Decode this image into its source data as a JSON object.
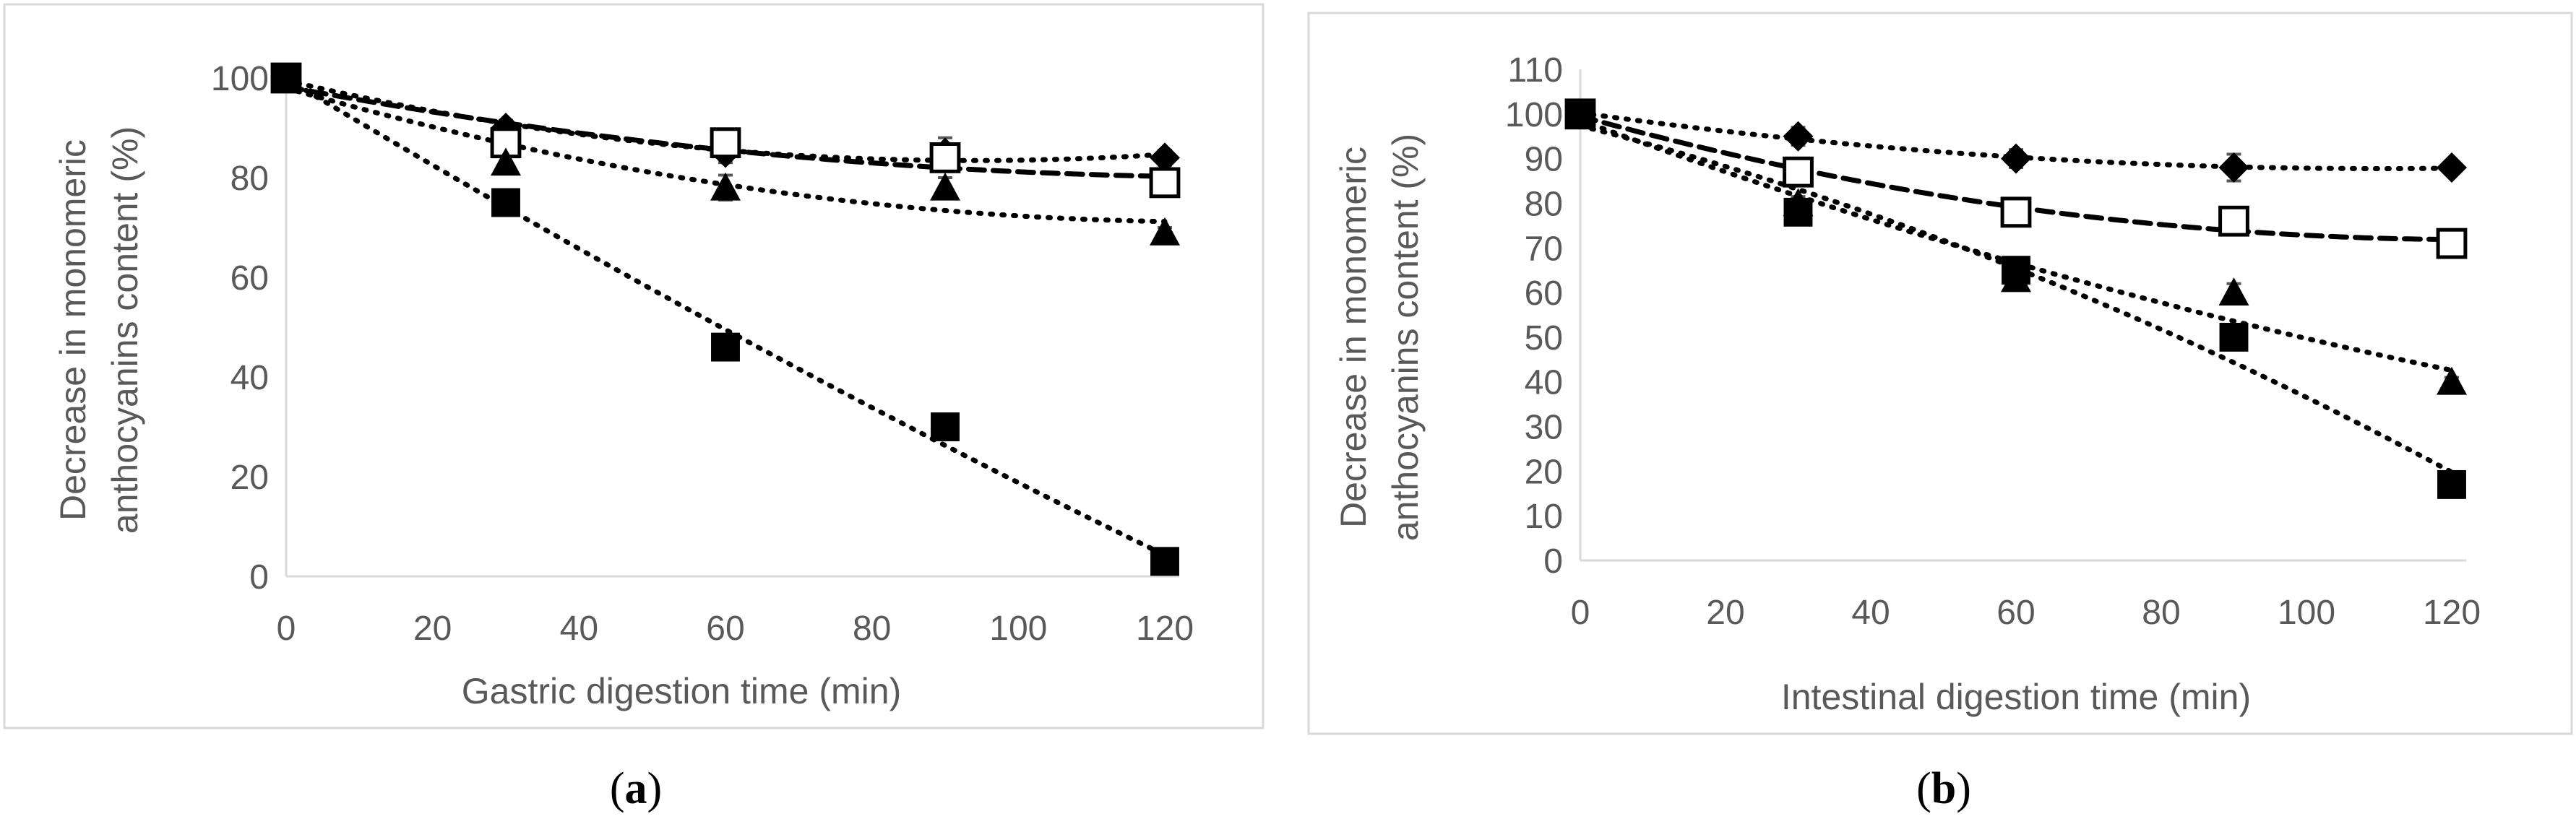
{
  "chart_data": [
    {
      "id": "a",
      "type": "scatter",
      "panel_label": "(a)",
      "panel_letter": "a",
      "xlabel": "Gastric digestion time (min)",
      "ylabel_lines": [
        "Decrease in monomeric",
        "anthocyanins content (%)"
      ],
      "xlim": [
        0,
        120
      ],
      "ylim": [
        0,
        100
      ],
      "xticks": [
        0,
        20,
        40,
        60,
        80,
        100,
        120
      ],
      "yticks": [
        0,
        20,
        40,
        60,
        80,
        100
      ],
      "grid": false,
      "legend": "none",
      "series": [
        {
          "marker": "diamond-filled",
          "trend": "dotted",
          "x": [
            0,
            30,
            60,
            90,
            120
          ],
          "y": [
            100,
            90,
            85,
            85,
            84
          ],
          "err": [
            0,
            1.5,
            2,
            3,
            1.5
          ]
        },
        {
          "marker": "square-open",
          "trend": "dashed",
          "x": [
            0,
            30,
            60,
            90,
            120
          ],
          "y": [
            100,
            87,
            87,
            84,
            79
          ],
          "err": [
            0,
            2,
            2,
            2,
            1.5
          ]
        },
        {
          "marker": "triangle-filled",
          "trend": "dotted",
          "x": [
            0,
            30,
            60,
            90,
            120
          ],
          "y": [
            100,
            83,
            78,
            78,
            69
          ],
          "err": [
            0,
            2,
            2.5,
            2,
            1
          ]
        },
        {
          "marker": "square-filled",
          "trend": "dotted",
          "x": [
            0,
            30,
            60,
            90,
            120
          ],
          "y": [
            100,
            75,
            46,
            30,
            3
          ],
          "err": [
            0,
            1.5,
            1.5,
            1,
            0.5
          ]
        }
      ]
    },
    {
      "id": "b",
      "type": "scatter",
      "panel_label": "(b)",
      "panel_letter": "b",
      "xlabel": "Intestinal digestion time (min)",
      "ylabel_lines": [
        "Decrease in monomeric",
        "anthocyanins content (%)"
      ],
      "xlim": [
        0,
        120
      ],
      "ylim": [
        0,
        110
      ],
      "xticks": [
        0,
        20,
        40,
        60,
        80,
        100,
        120
      ],
      "yticks": [
        0,
        10,
        20,
        30,
        40,
        50,
        60,
        70,
        80,
        90,
        100,
        110
      ],
      "grid": false,
      "legend": "none",
      "series": [
        {
          "marker": "diamond-filled",
          "trend": "dotted",
          "x": [
            0,
            30,
            60,
            90,
            120
          ],
          "y": [
            100,
            95,
            90,
            88,
            88
          ],
          "err": [
            0,
            2,
            2,
            3,
            1.5
          ]
        },
        {
          "marker": "square-open",
          "trend": "dashed",
          "x": [
            0,
            30,
            60,
            90,
            120
          ],
          "y": [
            100,
            87,
            78,
            76,
            71
          ],
          "err": [
            0,
            2,
            2,
            2,
            1.5
          ]
        },
        {
          "marker": "triangle-filled",
          "trend": "dotted",
          "x": [
            0,
            30,
            60,
            90,
            120
          ],
          "y": [
            100,
            80,
            63,
            60,
            40
          ],
          "err": [
            0,
            1.5,
            2.5,
            2,
            1
          ]
        },
        {
          "marker": "square-filled",
          "trend": "dotted",
          "x": [
            0,
            30,
            60,
            90,
            120
          ],
          "y": [
            100,
            78,
            65,
            50,
            17
          ],
          "err": [
            0,
            1.5,
            1.5,
            2,
            1
          ]
        }
      ]
    }
  ]
}
